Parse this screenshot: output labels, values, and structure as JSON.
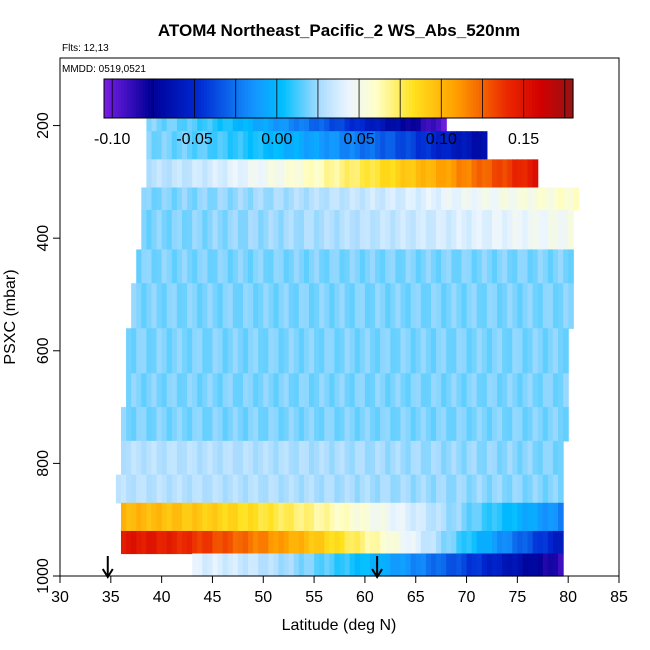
{
  "chart_data": {
    "type": "heatmap",
    "title": "ATOM4 Northeast_Pacific_2 WS_Abs_520nm",
    "flights_label": "Flts: 12,13",
    "dates_label": "MMDD: 0519,0521",
    "xlabel": "Latitude (deg N)",
    "ylabel": "PSXC (mbar)",
    "xlim": [
      30,
      85
    ],
    "ylim": [
      1000,
      80
    ],
    "x_ticks": [
      30,
      35,
      40,
      45,
      50,
      55,
      60,
      65,
      70,
      75,
      80,
      85
    ],
    "y_ticks": [
      200,
      400,
      600,
      800,
      1000
    ],
    "colorbar": {
      "range": [
        -0.105,
        0.18
      ],
      "ticks": [
        -0.1,
        -0.05,
        0.0,
        0.05,
        0.1,
        0.15
      ],
      "tick_labels": [
        "-0.10",
        "-0.05",
        "0.00",
        "0.05",
        "0.10",
        "0.15"
      ]
    },
    "markers": [
      {
        "label": "flight-segment-marker-start",
        "lat": 34.7
      },
      {
        "label": "flight-segment-marker-end",
        "lat": 61.2
      }
    ],
    "bands": [
      {
        "p_top": 170,
        "p_bot": 210,
        "lat_start": 38.5,
        "lat_end": 68.0,
        "v_start": 0.02,
        "v_end": -0.1
      },
      {
        "p_top": 210,
        "p_bot": 260,
        "lat_start": 38.5,
        "lat_end": 72.0,
        "v_start": 0.02,
        "v_end": -0.07
      },
      {
        "p_top": 260,
        "p_bot": 310,
        "lat_start": 38.5,
        "lat_end": 77.0,
        "v_start": 0.03,
        "v_end": 0.15
      },
      {
        "p_top": 310,
        "p_bot": 350,
        "lat_start": 38.0,
        "lat_end": 81.0,
        "v_start": 0.02,
        "v_end": 0.06
      },
      {
        "p_top": 350,
        "p_bot": 420,
        "lat_start": 38.0,
        "lat_end": 80.5,
        "v_start": 0.02,
        "v_end": 0.05
      },
      {
        "p_top": 420,
        "p_bot": 480,
        "lat_start": 37.5,
        "lat_end": 80.5,
        "v_start": 0.02,
        "v_end": 0.02
      },
      {
        "p_top": 480,
        "p_bot": 560,
        "lat_start": 37.0,
        "lat_end": 80.5,
        "v_start": 0.02,
        "v_end": 0.02
      },
      {
        "p_top": 560,
        "p_bot": 640,
        "lat_start": 36.5,
        "lat_end": 80.0,
        "v_start": 0.02,
        "v_end": 0.02
      },
      {
        "p_top": 640,
        "p_bot": 700,
        "lat_start": 36.5,
        "lat_end": 80.0,
        "v_start": 0.02,
        "v_end": 0.02
      },
      {
        "p_top": 700,
        "p_bot": 760,
        "lat_start": 36.0,
        "lat_end": 80.0,
        "v_start": 0.02,
        "v_end": 0.02
      },
      {
        "p_top": 760,
        "p_bot": 820,
        "lat_start": 36.0,
        "lat_end": 79.5,
        "v_start": 0.03,
        "v_end": 0.02
      },
      {
        "p_top": 820,
        "p_bot": 870,
        "lat_start": 35.5,
        "lat_end": 79.5,
        "v_start": 0.03,
        "v_end": 0.02
      },
      {
        "p_top": 870,
        "p_bot": 920,
        "lat_start": 36.0,
        "lat_end": 79.5,
        "v_start": 0.1,
        "v_end": -0.02
      },
      {
        "p_top": 920,
        "p_bot": 960,
        "lat_start": 36.0,
        "lat_end": 79.5,
        "v_start": 0.15,
        "v_end": -0.06
      },
      {
        "p_top": 960,
        "p_bot": 1000,
        "lat_start": 43.0,
        "lat_end": 79.5,
        "v_start": 0.04,
        "v_end": -0.09
      }
    ]
  }
}
